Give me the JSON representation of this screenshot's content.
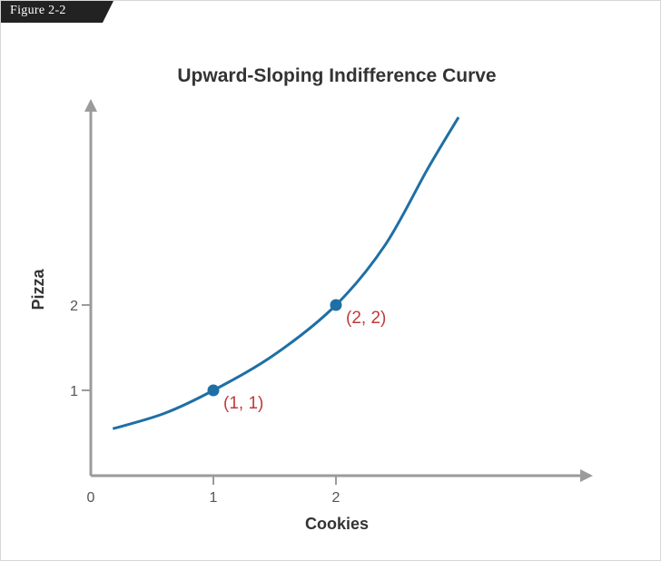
{
  "figure_tag": "Figure 2-2",
  "chart_data": {
    "type": "line",
    "title": "Upward-Sloping Indifference Curve",
    "xlabel": "Cookies",
    "ylabel": "Pizza",
    "origin_label": "0",
    "x_ticks": [
      1,
      2
    ],
    "y_ticks": [
      1,
      2
    ],
    "xlim": [
      0,
      4
    ],
    "ylim": [
      0,
      4.4
    ],
    "series": [
      {
        "color": "#1f6fa5",
        "points": [
          [
            0.18,
            0.55
          ],
          [
            0.6,
            0.73
          ],
          [
            1.0,
            1.0
          ],
          [
            1.5,
            1.42
          ],
          [
            2.0,
            2.0
          ],
          [
            2.4,
            2.7
          ],
          [
            2.75,
            3.6
          ],
          [
            3.0,
            4.2
          ]
        ]
      }
    ],
    "highlighted_points": [
      {
        "x": 1,
        "y": 1,
        "label": "(1, 1)"
      },
      {
        "x": 2,
        "y": 2,
        "label": "(2, 2)"
      }
    ],
    "axis_color": "#9b9b9b",
    "curve_color": "#1f6fa5",
    "point_color": "#1f6fa5",
    "point_label_color": "#c0393b"
  }
}
